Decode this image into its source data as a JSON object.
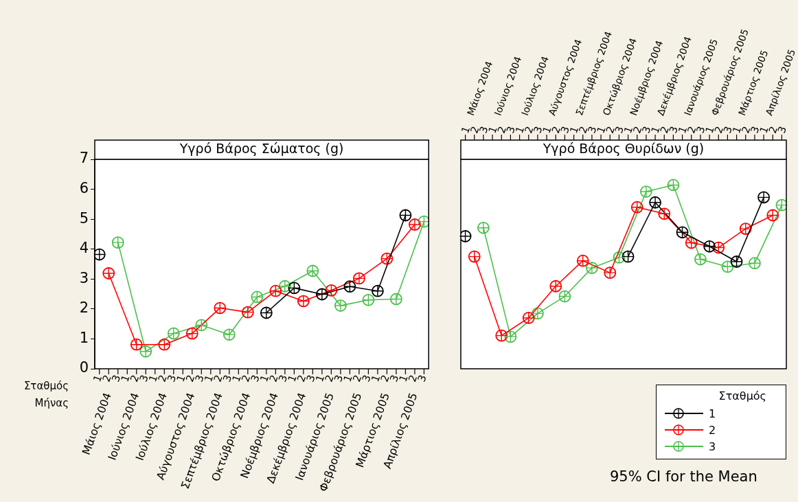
{
  "chart_data": [
    {
      "type": "line",
      "title": "Υγρό Βάρος Σώματος (g)",
      "categories": [
        "1",
        "2",
        "3",
        "1",
        "2",
        "3",
        "1",
        "2",
        "3",
        "1",
        "2",
        "3",
        "1",
        "2",
        "3",
        "1",
        "2",
        "3",
        "1",
        "2",
        "3",
        "1",
        "2",
        "3",
        "1",
        "2",
        "3",
        "1",
        "2",
        "3",
        "1",
        "2",
        "3",
        "1",
        "2",
        "3"
      ],
      "series": [
        {
          "name": "1",
          "color": "#000000",
          "values": [
            3.82,
            null,
            null,
            null,
            null,
            null,
            null,
            null,
            null,
            null,
            null,
            null,
            null,
            null,
            null,
            null,
            null,
            null,
            1.87,
            null,
            null,
            2.7,
            null,
            null,
            2.49,
            null,
            null,
            2.75,
            null,
            null,
            2.6,
            null,
            null,
            5.13,
            null,
            null
          ]
        },
        {
          "name": "2",
          "color": "#ff0000",
          "values": [
            null,
            3.19,
            null,
            null,
            0.81,
            null,
            null,
            0.81,
            null,
            null,
            1.18,
            null,
            null,
            2.03,
            null,
            null,
            1.89,
            null,
            null,
            2.6,
            null,
            null,
            2.26,
            null,
            null,
            2.62,
            null,
            null,
            3.02,
            null,
            null,
            3.68,
            null,
            null,
            4.82,
            null
          ]
        },
        {
          "name": "3",
          "color": "#4cbf4c",
          "values": [
            null,
            null,
            4.22,
            null,
            null,
            0.58,
            null,
            null,
            1.18,
            null,
            null,
            1.46,
            null,
            null,
            1.14,
            null,
            null,
            2.4,
            null,
            null,
            2.76,
            null,
            null,
            3.27,
            null,
            null,
            2.11,
            null,
            null,
            2.3,
            null,
            null,
            2.33,
            null,
            null,
            4.92
          ]
        }
      ],
      "ylim": [
        0,
        7
      ],
      "yticks": [
        0,
        1,
        2,
        3,
        4,
        5,
        6,
        7
      ],
      "marker": "circle",
      "legend": "bottom right",
      "legend_title": "Σταθμός",
      "annotations": [
        "Μάιος 2004",
        "Ιούνιος 2004",
        "Ιούλιος 2004",
        "Αύγουστος 2004",
        "Σεπτέμβριος 2004",
        "Οκτώβριος 2004",
        "Νοέμβριος 2004",
        "Δεκέμβριος 2004",
        "Ιανουάριος 2005",
        "Φεβρουάριος 2005",
        "Μάρτιος 2005",
        "Απρίλιος 2005",
        "Σταθμός",
        "Μήνας"
      ]
    },
    {
      "type": "line",
      "title": "Υγρό Βάρος Θυρίδων (g)",
      "categories": [
        "1",
        "2",
        "3",
        "1",
        "2",
        "3",
        "1",
        "2",
        "3",
        "1",
        "2",
        "3",
        "1",
        "2",
        "3",
        "1",
        "2",
        "3",
        "1",
        "2",
        "3",
        "1",
        "2",
        "3",
        "1",
        "2",
        "3",
        "1",
        "2",
        "3",
        "1",
        "2",
        "3",
        "1",
        "2",
        "3"
      ],
      "series": [
        {
          "name": "1",
          "color": "#000000",
          "values": [
            4.43,
            null,
            null,
            null,
            null,
            null,
            null,
            null,
            null,
            null,
            null,
            null,
            null,
            null,
            null,
            null,
            null,
            null,
            3.75,
            null,
            null,
            5.56,
            null,
            null,
            4.56,
            null,
            null,
            4.09,
            null,
            null,
            3.58,
            null,
            null,
            5.73,
            null,
            null
          ]
        },
        {
          "name": "2",
          "color": "#ff0000",
          "values": [
            null,
            3.75,
            null,
            null,
            1.11,
            null,
            null,
            1.7,
            null,
            null,
            2.76,
            null,
            null,
            3.61,
            null,
            null,
            3.21,
            null,
            null,
            5.4,
            null,
            null,
            5.18,
            null,
            null,
            4.21,
            null,
            null,
            4.05,
            null,
            null,
            4.68,
            null,
            null,
            5.13,
            null
          ]
        },
        {
          "name": "3",
          "color": "#4cbf4c",
          "values": [
            null,
            null,
            4.71,
            null,
            null,
            1.07,
            null,
            null,
            1.85,
            null,
            null,
            2.42,
            null,
            null,
            3.37,
            null,
            null,
            3.72,
            null,
            null,
            5.92,
            null,
            null,
            6.14,
            null,
            null,
            3.66,
            null,
            null,
            3.41,
            null,
            null,
            3.53,
            null,
            null,
            5.47
          ]
        }
      ],
      "ylim": [
        0,
        7
      ],
      "yticks": [
        0,
        1,
        2,
        3,
        4,
        5,
        6,
        7
      ],
      "marker": "circle",
      "tick_labels": "x",
      "annotations": [
        "Μάιος 2004",
        "Ιούνιος 2004",
        "Ιούλιος 2004",
        "Αύγουστος 2004",
        "Σεπτέμβριος 2004",
        "Οκτώβριος 2004",
        "Νοέμβριος 2004",
        "Δεκέμβριος 2004",
        "Ιανουάριος 2005",
        "Φεβρουάριος 2005",
        "Μάρτιος 2005",
        "Απρίλιος 2005",
        "95% CI for the Mean"
      ]
    }
  ]
}
